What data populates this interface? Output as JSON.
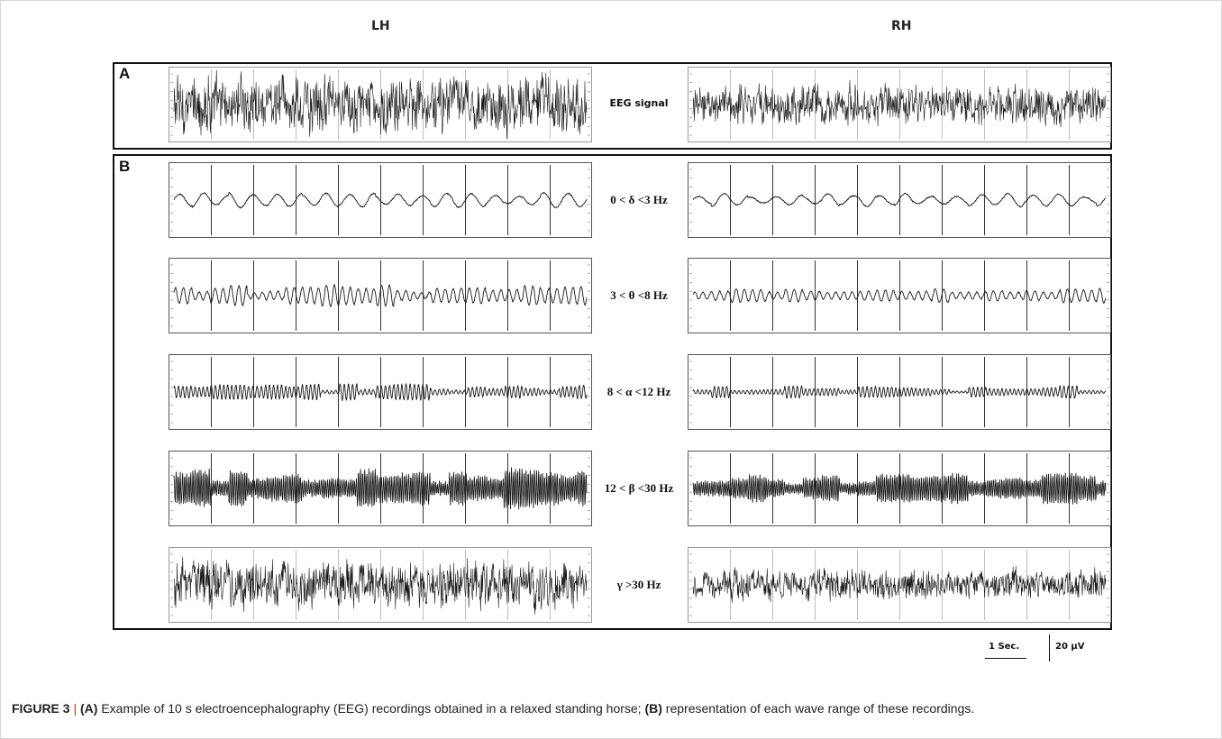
{
  "columns": {
    "left": "LH",
    "right": "RH"
  },
  "sections": {
    "a": "A",
    "b": "B"
  },
  "bands": [
    {
      "id": "eeg",
      "label": "EEG signal",
      "section": "A",
      "left": {
        "amp": 0.8,
        "freq": 60,
        "wobble": 0.15
      },
      "right": {
        "amp": 0.55,
        "freq": 60,
        "wobble": 0.15
      }
    },
    {
      "id": "delta",
      "label": "0 < δ <3 Hz",
      "section": "B",
      "left": {
        "amp": 0.16,
        "freq": 1.7,
        "wobble": 0.4
      },
      "right": {
        "amp": 0.14,
        "freq": 1.6,
        "wobble": 0.4
      }
    },
    {
      "id": "theta",
      "label": "3 < θ <8 Hz",
      "section": "B",
      "left": {
        "amp": 0.2,
        "freq": 5.2,
        "wobble": 0.6
      },
      "right": {
        "amp": 0.15,
        "freq": 5.0,
        "wobble": 0.5
      }
    },
    {
      "id": "alpha",
      "label": "8 < α <12 Hz",
      "section": "B",
      "left": {
        "amp": 0.14,
        "freq": 10,
        "wobble": 0.8
      },
      "right": {
        "amp": 0.11,
        "freq": 10,
        "wobble": 0.8
      }
    },
    {
      "id": "beta",
      "label": "12 < β <30 Hz",
      "section": "B",
      "left": {
        "amp": 0.38,
        "freq": 20,
        "wobble": 0.55
      },
      "right": {
        "amp": 0.28,
        "freq": 20,
        "wobble": 0.55
      }
    },
    {
      "id": "gamma",
      "label": "γ >30 Hz",
      "section": "B",
      "left": {
        "amp": 0.65,
        "freq": 45,
        "wobble": 0.1
      },
      "right": {
        "amp": 0.42,
        "freq": 45,
        "wobble": 0.1
      }
    }
  ],
  "scale": {
    "time": "1 Sec.",
    "amplitude": "20 µV"
  },
  "caption": {
    "label": "FIGURE 3",
    "separator": " | ",
    "part_a": "(A)",
    "text_a": " Example of 10 s electroencephalography (EEG) recordings obtained in a relaxed standing horse; ",
    "part_b": "(B)",
    "text_b": " representation of each wave range of these recordings."
  }
}
